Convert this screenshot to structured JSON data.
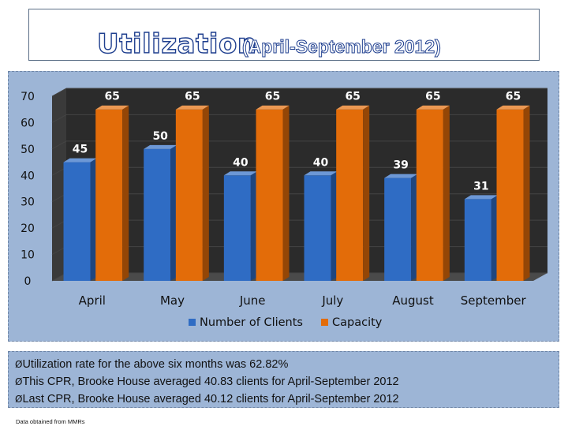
{
  "title": {
    "main": "Utilization",
    "sub": "(April-September 2012)"
  },
  "chart_data": {
    "type": "bar",
    "categories": [
      "April",
      "May",
      "June",
      "July",
      "August",
      "September"
    ],
    "series": [
      {
        "name": "Number of Clients",
        "values": [
          45,
          50,
          40,
          40,
          39,
          31
        ],
        "color": "#2f6cc4"
      },
      {
        "name": "Capacity",
        "values": [
          65,
          65,
          65,
          65,
          65,
          65
        ],
        "color": "#e36c09"
      }
    ],
    "ylim": [
      0,
      70
    ],
    "yticks": [
      "0",
      "10",
      "20",
      "30",
      "40",
      "50",
      "60",
      "70"
    ],
    "data_labels": true,
    "legend": "bottom",
    "style": "3d"
  },
  "bullets": {
    "marker": "Ø",
    "items": [
      "Utilization rate for the above six months was 62.82%",
      "This CPR, Brooke House averaged 40.83 clients for April-September 2012",
      "Last CPR, Brooke House averaged 40.12 clients for April-September 2012"
    ]
  },
  "footnote": "Data obtained from MMRs"
}
